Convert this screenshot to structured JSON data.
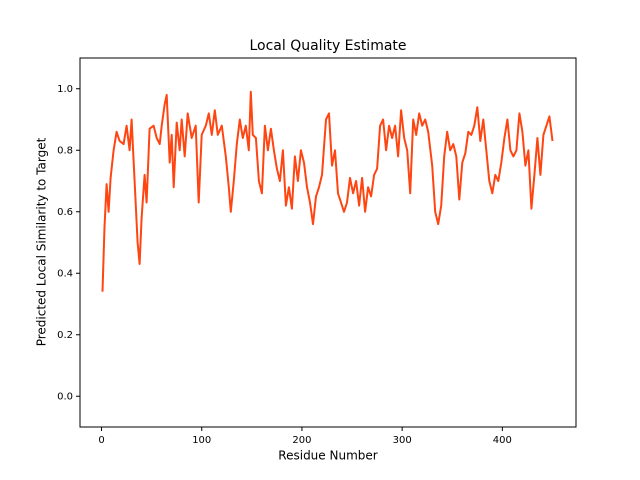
{
  "chart_data": {
    "type": "line",
    "title": "Local Quality Estimate",
    "x_label": "Residue Number",
    "y_label": "Predicted Local Similarity to Target",
    "xlim": [
      -21.5,
      473.5
    ],
    "ylim": [
      -0.1,
      1.1
    ],
    "xticks": [
      0,
      100,
      200,
      300,
      400
    ],
    "yticks": [
      {
        "value": 0,
        "label": "0.0"
      },
      {
        "value": 0.2,
        "label": "0.2"
      },
      {
        "value": 0.4,
        "label": "0.4"
      },
      {
        "value": 0.6,
        "label": "0.6"
      },
      {
        "value": 0.8,
        "label": "0.8"
      },
      {
        "value": 1,
        "label": "1.0"
      }
    ],
    "series": [
      {
        "color": "#ff4511",
        "x": [
          1,
          3,
          5,
          7,
          9,
          12,
          15,
          18,
          22,
          25,
          28,
          30,
          33,
          36,
          38,
          40,
          43,
          45,
          48,
          52,
          55,
          58,
          60,
          63,
          65,
          68,
          70,
          72,
          75,
          78,
          80,
          83,
          86,
          90,
          94,
          97,
          100,
          104,
          107,
          110,
          113,
          116,
          120,
          124,
          127,
          129,
          132,
          135,
          138,
          141,
          144,
          147,
          149,
          151,
          154,
          157,
          160,
          163,
          166,
          169,
          172,
          175,
          178,
          181,
          184,
          187,
          190,
          193,
          196,
          199,
          202,
          205,
          208,
          211,
          214,
          217,
          220,
          224,
          227,
          230,
          233,
          236,
          239,
          242,
          245,
          248,
          251,
          254,
          257,
          260,
          263,
          266,
          269,
          272,
          275,
          278,
          281,
          284,
          287,
          290,
          293,
          296,
          299,
          302,
          305,
          308,
          311,
          314,
          317,
          320,
          323,
          326,
          330,
          333,
          336,
          339,
          342,
          345,
          348,
          351,
          354,
          357,
          360,
          363,
          366,
          369,
          372,
          375,
          378,
          381,
          384,
          387,
          390,
          393,
          396,
          399,
          402,
          405,
          408,
          411,
          414,
          417,
          420,
          423,
          426,
          429,
          432,
          435,
          438,
          441,
          444,
          447,
          450
        ],
        "values": [
          0.34,
          0.55,
          0.69,
          0.6,
          0.71,
          0.8,
          0.86,
          0.83,
          0.82,
          0.88,
          0.8,
          0.9,
          0.7,
          0.5,
          0.43,
          0.58,
          0.72,
          0.63,
          0.87,
          0.88,
          0.84,
          0.82,
          0.88,
          0.95,
          0.98,
          0.76,
          0.85,
          0.68,
          0.89,
          0.8,
          0.9,
          0.78,
          0.92,
          0.84,
          0.88,
          0.63,
          0.85,
          0.88,
          0.92,
          0.85,
          0.93,
          0.85,
          0.88,
          0.78,
          0.68,
          0.6,
          0.7,
          0.82,
          0.9,
          0.84,
          0.88,
          0.8,
          0.99,
          0.85,
          0.84,
          0.7,
          0.66,
          0.88,
          0.8,
          0.87,
          0.8,
          0.74,
          0.7,
          0.8,
          0.62,
          0.68,
          0.61,
          0.78,
          0.7,
          0.8,
          0.76,
          0.68,
          0.63,
          0.56,
          0.65,
          0.68,
          0.72,
          0.9,
          0.92,
          0.75,
          0.8,
          0.66,
          0.63,
          0.6,
          0.63,
          0.71,
          0.66,
          0.7,
          0.62,
          0.71,
          0.6,
          0.68,
          0.65,
          0.72,
          0.74,
          0.88,
          0.9,
          0.8,
          0.88,
          0.84,
          0.88,
          0.78,
          0.93,
          0.84,
          0.8,
          0.66,
          0.9,
          0.85,
          0.92,
          0.88,
          0.9,
          0.86,
          0.75,
          0.6,
          0.56,
          0.62,
          0.78,
          0.86,
          0.8,
          0.82,
          0.78,
          0.64,
          0.76,
          0.79,
          0.86,
          0.85,
          0.88,
          0.94,
          0.83,
          0.9,
          0.8,
          0.7,
          0.66,
          0.72,
          0.7,
          0.76,
          0.84,
          0.9,
          0.8,
          0.78,
          0.8,
          0.92,
          0.86,
          0.75,
          0.8,
          0.61,
          0.72,
          0.84,
          0.72,
          0.85,
          0.88,
          0.91,
          0.83
        ]
      }
    ]
  }
}
